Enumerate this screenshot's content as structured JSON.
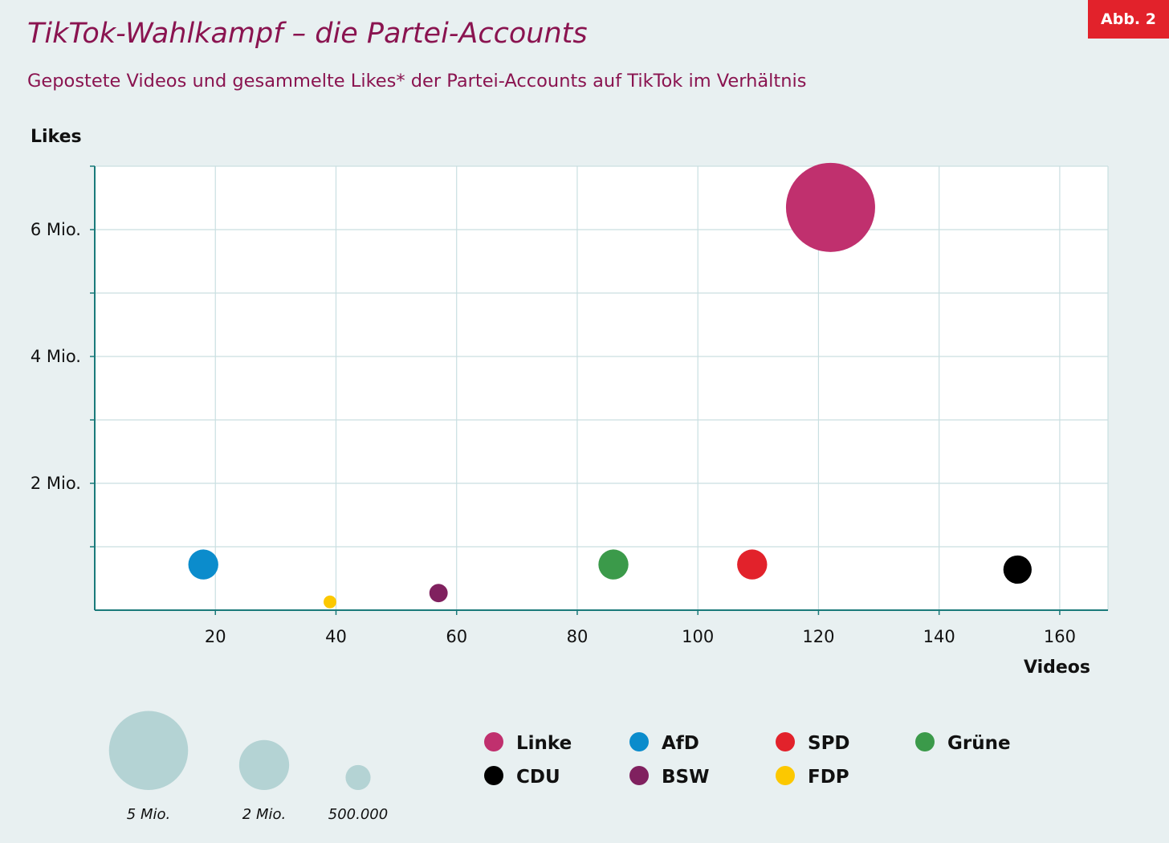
{
  "header": {
    "title": "TikTok-Wahlkampf – die Partei-Accounts",
    "subtitle": "Gepostete Videos und gesammelte Likes* der Partei-Accounts auf TikTok im Verhältnis",
    "badge": "Abb. 2"
  },
  "chart_data": {
    "type": "scatter",
    "bubble": true,
    "xlabel": "Videos",
    "ylabel": "Likes",
    "xlim": [
      0,
      168
    ],
    "ylim": [
      0,
      7000000
    ],
    "x_ticks": [
      {
        "value": 20,
        "label": "20"
      },
      {
        "value": 40,
        "label": "40"
      },
      {
        "value": 60,
        "label": "60"
      },
      {
        "value": 80,
        "label": "80"
      },
      {
        "value": 100,
        "label": "100"
      },
      {
        "value": 120,
        "label": "120"
      },
      {
        "value": 140,
        "label": "140"
      },
      {
        "value": 160,
        "label": "160"
      }
    ],
    "x_grid": [
      20,
      40,
      60,
      80,
      100,
      120,
      140,
      160
    ],
    "y_ticks": [
      {
        "value": 2000000,
        "label": "2 Mio."
      },
      {
        "value": 4000000,
        "label": "4 Mio."
      },
      {
        "value": 6000000,
        "label": "6 Mio."
      }
    ],
    "y_grid": [
      1000000,
      2000000,
      3000000,
      4000000,
      5000000,
      6000000,
      7000000
    ],
    "grid": true,
    "series": [
      {
        "name": "Linke",
        "x": 122,
        "y": 6350000,
        "size": 6350000,
        "color": "#c0306e"
      },
      {
        "name": "AfD",
        "x": 18,
        "y": 720000,
        "size": 720000,
        "color": "#0b8ccc"
      },
      {
        "name": "SPD",
        "x": 109,
        "y": 720000,
        "size": 720000,
        "color": "#e2222b"
      },
      {
        "name": "Grüne",
        "x": 86,
        "y": 720000,
        "size": 720000,
        "color": "#3b9a4a"
      },
      {
        "name": "CDU",
        "x": 153,
        "y": 640000,
        "size": 640000,
        "color": "#000000"
      },
      {
        "name": "BSW",
        "x": 57,
        "y": 270000,
        "size": 270000,
        "color": "#80215f"
      },
      {
        "name": "FDP",
        "x": 39,
        "y": 130000,
        "size": 130000,
        "color": "#fcc800"
      }
    ],
    "legend": {
      "placement": "bottom",
      "rows": [
        [
          "Linke",
          "AfD",
          "SPD",
          "Grüne"
        ],
        [
          "CDU",
          "BSW",
          "FDP"
        ]
      ]
    },
    "size_legend": [
      {
        "value": 5000000,
        "label": "5 Mio."
      },
      {
        "value": 2000000,
        "label": "2 Mio."
      },
      {
        "value": 500000,
        "label": "500.000"
      }
    ],
    "size_legend_color": "#b4d3d4",
    "axis_color": "#1a7a7a",
    "grid_color": "#c9dfe1"
  }
}
